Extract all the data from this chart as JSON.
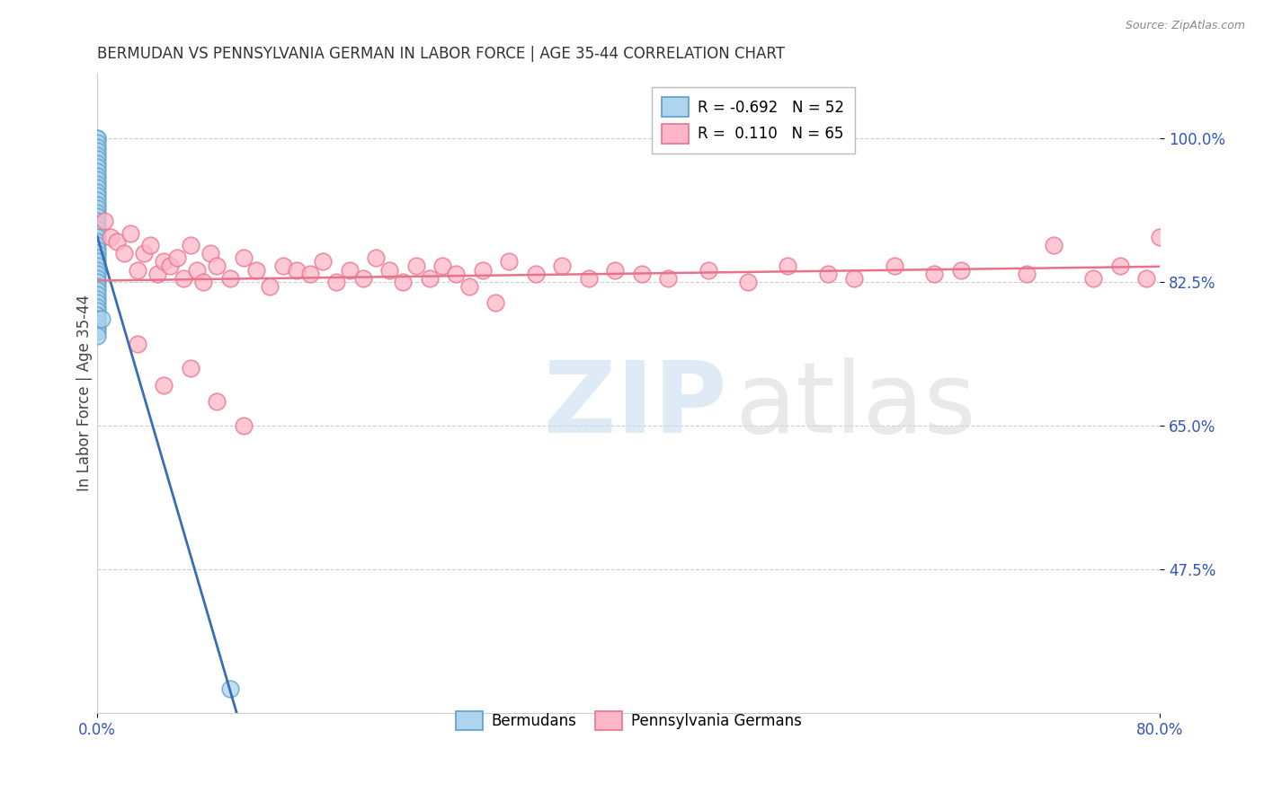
{
  "title": "BERMUDAN VS PENNSYLVANIA GERMAN IN LABOR FORCE | AGE 35-44 CORRELATION CHART",
  "source": "Source: ZipAtlas.com",
  "ylabel": "In Labor Force | Age 35-44",
  "x_min": 0.0,
  "x_max": 80.0,
  "y_min": 30.0,
  "y_max": 108.0,
  "y_ticks": [
    47.5,
    65.0,
    82.5,
    100.0
  ],
  "y_tick_labels": [
    "47.5%",
    "65.0%",
    "82.5%",
    "100.0%"
  ],
  "grid_color": "#cccccc",
  "background_color": "#ffffff",
  "bermuda_color": "#aed4ee",
  "bermuda_edge": "#5b9ec9",
  "penn_color": "#ffb6c8",
  "penn_edge": "#e8728a",
  "line_blue": "#3a6db5",
  "line_pink": "#e8728a",
  "berm_x": [
    0.0,
    0.0,
    0.0,
    0.0,
    0.0,
    0.0,
    0.0,
    0.0,
    0.0,
    0.0,
    0.0,
    0.0,
    0.0,
    0.0,
    0.0,
    0.0,
    0.0,
    0.0,
    0.0,
    0.0,
    0.0,
    0.0,
    0.0,
    0.0,
    0.0,
    0.0,
    0.0,
    0.0,
    0.0,
    0.0,
    0.0,
    0.0,
    0.0,
    0.0,
    0.0,
    0.0,
    0.0,
    0.0,
    0.0,
    0.0,
    0.0,
    0.0,
    0.0,
    0.0,
    0.0,
    0.0,
    0.0,
    0.0,
    0.0,
    0.0,
    0.3,
    10.0
  ],
  "berm_y": [
    100.0,
    100.0,
    99.5,
    99.0,
    98.5,
    98.0,
    97.5,
    97.0,
    96.5,
    96.0,
    95.5,
    95.0,
    94.5,
    94.0,
    93.5,
    93.0,
    92.5,
    92.0,
    91.5,
    91.0,
    90.5,
    90.0,
    89.5,
    89.0,
    88.5,
    88.0,
    87.5,
    87.0,
    86.5,
    86.0,
    85.5,
    85.0,
    84.5,
    84.0,
    83.5,
    83.0,
    82.5,
    82.0,
    81.5,
    81.0,
    80.5,
    80.0,
    79.5,
    79.0,
    78.5,
    78.0,
    77.5,
    77.0,
    76.5,
    76.0,
    78.0,
    33.0
  ],
  "penn_x": [
    0.5,
    1.0,
    1.5,
    2.0,
    2.5,
    3.0,
    3.5,
    4.0,
    4.5,
    5.0,
    5.5,
    6.0,
    6.5,
    7.0,
    7.5,
    8.0,
    8.5,
    9.0,
    10.0,
    11.0,
    12.0,
    13.0,
    14.0,
    15.0,
    16.0,
    17.0,
    18.0,
    19.0,
    20.0,
    21.0,
    22.0,
    23.0,
    24.0,
    25.0,
    26.0,
    27.0,
    28.0,
    29.0,
    30.0,
    31.0,
    33.0,
    35.0,
    37.0,
    39.0,
    41.0,
    43.0,
    46.0,
    49.0,
    52.0,
    55.0,
    57.0,
    60.0,
    63.0,
    65.0,
    70.0,
    72.0,
    75.0,
    77.0,
    79.0,
    80.0,
    3.0,
    5.0,
    7.0,
    9.0,
    11.0
  ],
  "penn_y": [
    90.0,
    88.0,
    87.5,
    86.0,
    88.5,
    84.0,
    86.0,
    87.0,
    83.5,
    85.0,
    84.5,
    85.5,
    83.0,
    87.0,
    84.0,
    82.5,
    86.0,
    84.5,
    83.0,
    85.5,
    84.0,
    82.0,
    84.5,
    84.0,
    83.5,
    85.0,
    82.5,
    84.0,
    83.0,
    85.5,
    84.0,
    82.5,
    84.5,
    83.0,
    84.5,
    83.5,
    82.0,
    84.0,
    80.0,
    85.0,
    83.5,
    84.5,
    83.0,
    84.0,
    83.5,
    83.0,
    84.0,
    82.5,
    84.5,
    83.5,
    83.0,
    84.5,
    83.5,
    84.0,
    83.5,
    87.0,
    83.0,
    84.5,
    83.0,
    88.0,
    75.0,
    70.0,
    72.0,
    68.0,
    65.0
  ]
}
